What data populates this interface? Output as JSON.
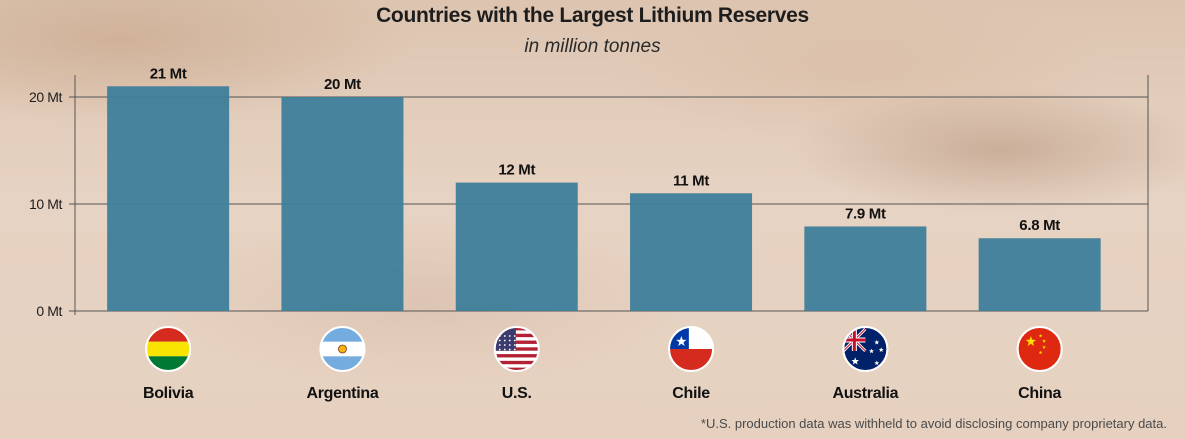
{
  "chart_data": {
    "type": "bar",
    "title": "Countries with the Largest Lithium Reserves",
    "subtitle": "in million tonnes",
    "categories": [
      "Bolivia",
      "Argentina",
      "U.S.",
      "Chile",
      "Australia",
      "China"
    ],
    "values": [
      21,
      20,
      12,
      11,
      7.9,
      6.8
    ],
    "value_labels": [
      "21 Mt",
      "20 Mt",
      "12 Mt",
      "11 Mt",
      "7.9 Mt",
      "6.8 Mt"
    ],
    "flag_icons": [
      "bolivia-flag-icon",
      "argentina-flag-icon",
      "us-flag-icon",
      "chile-flag-icon",
      "australia-flag-icon",
      "china-flag-icon"
    ],
    "y_ticks": [
      0,
      10,
      20
    ],
    "y_tick_labels": [
      "0 Mt",
      "10 Mt",
      "20 Mt"
    ],
    "ylim": [
      0,
      22
    ],
    "grid": true,
    "xlabel": "",
    "ylabel": "",
    "bar_color": "#3e7e9a",
    "footnote": "*U.S. production data was withheld to avoid disclosing company proprietary data."
  }
}
